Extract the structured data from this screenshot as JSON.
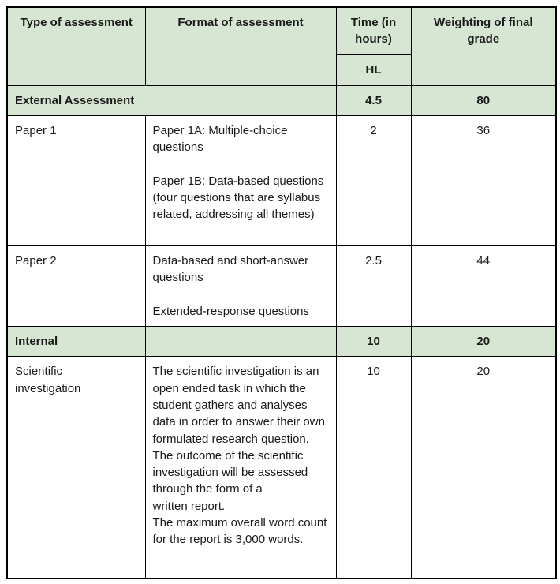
{
  "colors": {
    "green": "#d7e6d3",
    "border": "#000000",
    "text": "#1a1a1a"
  },
  "table": {
    "header": {
      "type_label": "Type of assessment",
      "format_label": "Format of assessment",
      "time_label": "Time (in hours)",
      "level_label": "HL",
      "weighting_label": "Weighting of final grade"
    },
    "sections": {
      "external": {
        "label": "External Assessment",
        "time": "4.5",
        "weighting": "80"
      },
      "internal": {
        "label": "Internal",
        "format": "",
        "time": "10",
        "weighting": "20"
      }
    },
    "rows": {
      "paper1": {
        "type": "Paper 1",
        "format": "Paper 1A: Multiple-choice questions\n\nPaper 1B: Data-based questions (four questions that are syllabus related, addressing all themes)",
        "time": "2",
        "weighting": "36"
      },
      "paper2": {
        "type": "Paper 2",
        "format": "Data-based and short-answer questions\n\nExtended-response questions",
        "time": "2.5",
        "weighting": "44"
      },
      "scientific": {
        "type": "Scientific\ninvestigation",
        "format": "The scientific investigation is an open ended task in which the student gathers and analyses data in order to answer their own formulated research question.\nThe outcome of the scientific investigation will be assessed through the form of a\nwritten report.\nThe maximum overall word count for the report is 3,000 words.",
        "time": "10",
        "weighting": "20"
      }
    }
  }
}
